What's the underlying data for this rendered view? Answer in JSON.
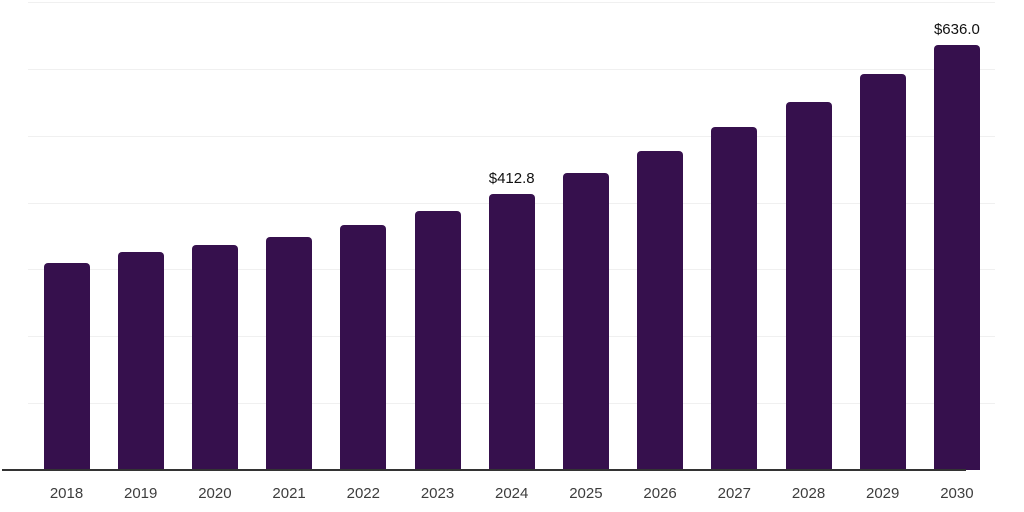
{
  "chart_data": {
    "type": "bar",
    "title": "",
    "xlabel": "",
    "ylabel": "",
    "categories": [
      "2018",
      "2019",
      "2020",
      "2021",
      "2022",
      "2023",
      "2024",
      "2025",
      "2026",
      "2027",
      "2028",
      "2029",
      "2030"
    ],
    "values": [
      310.0,
      326.0,
      337.0,
      349.0,
      367.0,
      388.0,
      412.8,
      443.6,
      476.7,
      512.3,
      550.6,
      591.8,
      636.0
    ],
    "data_labels": {
      "2024": "$412.8",
      "2030": "$636.0"
    },
    "currency_prefix": "$",
    "ylim": [
      0,
      700
    ],
    "gridline_interval": 100,
    "grid": "horizontal",
    "legend": "none"
  },
  "colors": {
    "bar": "#36104d",
    "axis_line": "#333333",
    "tick_label": "#3d3d3d",
    "data_label": "#111111",
    "gridline": "#f0f0f0",
    "background": "#ffffff"
  }
}
